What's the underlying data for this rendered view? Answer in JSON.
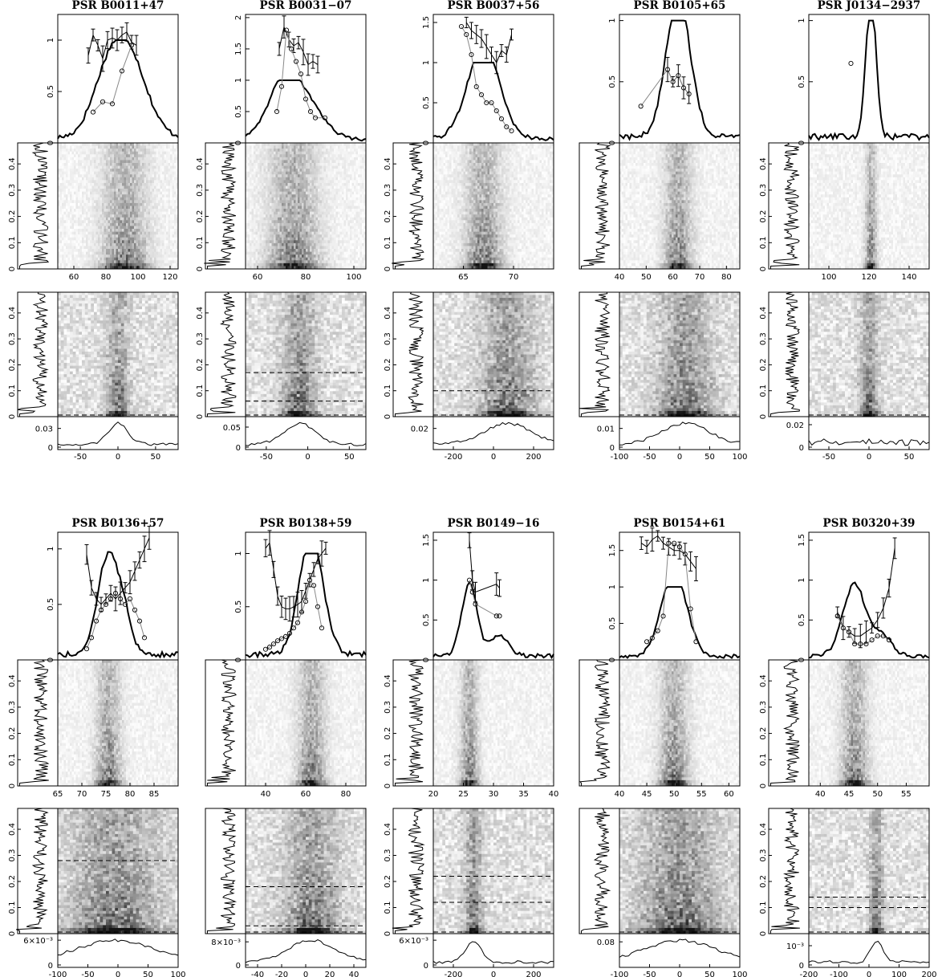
{
  "chart_data": [
    {
      "type": "heatmap",
      "title": "PSR B0011+47",
      "profile": {
        "yticks": [
          "0",
          "0.5",
          "1"
        ],
        "ylim": [
          0,
          1.25
        ],
        "peak": [
          92,
          12
        ],
        "peak2": [
          78,
          9
        ],
        "floor": 0.05
      },
      "modulation": {
        "present": true,
        "x": [
          69,
          72,
          75,
          78,
          81,
          84,
          87,
          90,
          93,
          96,
          99
        ],
        "y": [
          0.85,
          1.05,
          0.95,
          0.82,
          1.0,
          1.02,
          1.0,
          1.05,
          1.08,
          0.98,
          0.95
        ]
      },
      "index": [
        {
          "x": [
            72,
            78,
            84,
            90,
            96
          ],
          "y": [
            0.3,
            0.4,
            0.38,
            0.7,
            0.95
          ]
        }
      ],
      "lrfs": {
        "xlim": [
          50,
          125
        ],
        "xticks": [
          "60",
          "80",
          "100",
          "120"
        ],
        "yticks": [
          "0",
          "0.1",
          "0.2",
          "0.3",
          "0.4"
        ],
        "ylim": [
          0,
          0.48
        ]
      },
      "s2dfs": {
        "xlim": [
          -80,
          80
        ],
        "xticks": [
          "-50",
          "0",
          "50"
        ],
        "peak": [
          0,
          10
        ],
        "yticks": [
          "0",
          "0.03"
        ],
        "yvals": [
          0,
          0.03
        ],
        "ymax": 0.045,
        "dashed": []
      }
    },
    {
      "type": "heatmap",
      "title": "PSR B0031−07",
      "profile": {
        "yticks": [
          "0",
          "0.5",
          "1",
          "1.5",
          "2"
        ],
        "ylim": [
          0,
          2.05
        ],
        "peak": [
          75,
          9
        ],
        "peak2": [
          70,
          5
        ],
        "floor": 0.05
      },
      "modulation": {
        "present": true,
        "x": [
          69,
          71,
          73,
          75,
          77,
          79,
          81,
          83,
          85
        ],
        "y": [
          1.5,
          1.85,
          1.65,
          1.55,
          1.6,
          1.45,
          1.25,
          1.3,
          1.25
        ]
      },
      "index": [
        {
          "x": [
            68,
            70,
            72,
            74,
            76,
            78,
            80,
            82,
            84,
            88
          ],
          "y": [
            0.5,
            0.9,
            1.8,
            1.5,
            1.3,
            1.1,
            0.7,
            0.5,
            0.4,
            0.4
          ]
        }
      ],
      "lrfs": {
        "xlim": [
          55,
          105
        ],
        "xticks": [
          "60",
          "80",
          "100"
        ],
        "yticks": [
          "0",
          "0.1",
          "0.2",
          "0.3",
          "0.4"
        ],
        "ylim": [
          0,
          0.48
        ]
      },
      "s2dfs": {
        "xlim": [
          -75,
          70
        ],
        "xticks": [
          "-50",
          "0",
          "50"
        ],
        "peak": [
          -10,
          14
        ],
        "yticks": [
          "0",
          "0.05"
        ],
        "yvals": [
          0,
          0.05
        ],
        "ymax": 0.07,
        "dashed": [
          0.17,
          0.06
        ]
      }
    },
    {
      "type": "heatmap",
      "title": "PSR B0037+56",
      "profile": {
        "yticks": [
          "0",
          "0.5",
          "1",
          "1.5"
        ],
        "ylim": [
          0,
          1.6
        ],
        "peak": [
          67,
          1.6
        ],
        "peak2": [
          67,
          1.6
        ],
        "floor": 0.05
      },
      "modulation": {
        "present": true,
        "x": [
          65.3,
          65.8,
          66.3,
          66.8,
          67.3,
          67.8,
          68.3,
          68.8,
          69.3,
          69.8
        ],
        "y": [
          1.5,
          1.4,
          1.35,
          1.3,
          1.2,
          1.1,
          1.0,
          1.15,
          1.1,
          1.35
        ]
      },
      "index": [
        {
          "x": [
            64.8,
            65.3,
            65.8,
            66.3,
            66.8,
            67.3,
            67.8,
            68.3,
            68.8,
            69.3,
            69.8
          ],
          "y": [
            1.45,
            1.35,
            1.1,
            0.7,
            0.6,
            0.5,
            0.5,
            0.4,
            0.3,
            0.2,
            0.15
          ]
        }
      ],
      "lrfs": {
        "xlim": [
          62,
          74
        ],
        "xticks": [
          "65",
          "70"
        ],
        "yticks": [
          "0",
          "0.1",
          "0.2",
          "0.3",
          "0.4"
        ],
        "ylim": [
          0,
          0.48
        ]
      },
      "s2dfs": {
        "xlim": [
          -300,
          300
        ],
        "xticks": [
          "-200",
          "0",
          "200"
        ],
        "peak": [
          70,
          90
        ],
        "yticks": [
          "0.02"
        ],
        "yvals": [
          0.02
        ],
        "ymax": 0.03,
        "dashed": [
          0.1
        ]
      }
    },
    {
      "type": "heatmap",
      "title": "PSR B0105+65",
      "profile": {
        "yticks": [
          "0",
          "0.5",
          "1"
        ],
        "ylim": [
          0,
          1.05
        ],
        "peak": [
          62,
          4.5
        ],
        "peak2": [
          62,
          4.5
        ],
        "floor": 0.05
      },
      "modulation": {
        "present": true,
        "x": [
          58,
          60,
          62,
          64,
          66
        ],
        "y": [
          0.6,
          0.5,
          0.55,
          0.45,
          0.4
        ]
      },
      "index": [
        {
          "x": [
            48,
            58,
            60,
            62,
            64,
            66
          ],
          "y": [
            0.3,
            0.6,
            0.5,
            0.55,
            0.45,
            0.4
          ]
        }
      ],
      "lrfs": {
        "xlim": [
          40,
          85
        ],
        "xticks": [
          "40",
          "50",
          "60",
          "70",
          "80"
        ],
        "yticks": [],
        "ylim": [
          0,
          0.48
        ]
      },
      "s2dfs": {
        "xlim": [
          -100,
          100
        ],
        "xticks": [
          "-100",
          "-50",
          "0",
          "50",
          "100"
        ],
        "peak": [
          10,
          30
        ],
        "yticks": [
          "0",
          "0.01"
        ],
        "yvals": [
          0,
          0.01
        ],
        "ymax": 0.015,
        "dashed": []
      }
    },
    {
      "type": "heatmap",
      "title": "PSR J0134−2937",
      "profile": {
        "yticks": [
          "0",
          "0.5",
          "1"
        ],
        "ylim": [
          0,
          1.05
        ],
        "peak": [
          121,
          2.5
        ],
        "peak2": [
          121,
          2.5
        ],
        "floor": 0.05
      },
      "modulation": {
        "present": false,
        "x": [],
        "y": []
      },
      "index": [
        {
          "x": [
            111
          ],
          "y": [
            0.65
          ]
        }
      ],
      "lrfs": {
        "xlim": [
          90,
          150
        ],
        "xticks": [
          "100",
          "120",
          "140"
        ],
        "yticks": [
          "0",
          "0.1",
          "0.2",
          "0.3",
          "0.4"
        ],
        "ylim": [
          0,
          0.48
        ]
      },
      "s2dfs": {
        "xlim": [
          -75,
          75
        ],
        "xticks": [
          "-50",
          "0",
          "50"
        ],
        "peak": [
          0,
          0
        ],
        "yticks": [
          "0",
          "0.02"
        ],
        "yvals": [
          0,
          0.02
        ],
        "ymax": 0.025,
        "dashed": []
      }
    },
    {
      "type": "heatmap",
      "title": "PSR B0136+57",
      "profile": {
        "yticks": [
          "0",
          "0.5",
          "1"
        ],
        "ylim": [
          0,
          1.15
        ],
        "peak": [
          75.5,
          2.2
        ],
        "peak2": [
          79,
          1.5
        ],
        "floor": 0.05
      },
      "modulation": {
        "present": true,
        "x": [
          71,
          72,
          73,
          74,
          75,
          76,
          77,
          78,
          79,
          80,
          81,
          82,
          83,
          84
        ],
        "y": [
          0.95,
          0.65,
          0.55,
          0.5,
          0.55,
          0.6,
          0.55,
          0.6,
          0.65,
          0.7,
          0.8,
          0.9,
          1.0,
          1.1
        ]
      },
      "index": [
        {
          "x": [
            71,
            72,
            73,
            74,
            75,
            76,
            77,
            78,
            79,
            80,
            81,
            82,
            83
          ],
          "y": [
            0.1,
            0.2,
            0.35,
            0.45,
            0.5,
            0.55,
            0.6,
            0.55,
            0.5,
            0.55,
            0.45,
            0.35,
            0.2
          ]
        }
      ],
      "lrfs": {
        "xlim": [
          65,
          90
        ],
        "xticks": [
          "65",
          "70",
          "75",
          "80",
          "85"
        ],
        "yticks": [
          "0",
          "0.1",
          "0.2",
          "0.3",
          "0.4"
        ],
        "ylim": [
          0,
          0.48
        ]
      },
      "s2dfs": {
        "xlim": [
          -100,
          100
        ],
        "xticks": [
          "-100",
          "-50",
          "0",
          "50",
          "100"
        ],
        "peak": [
          -5,
          50
        ],
        "yticks": [
          "0",
          "6×10⁻³"
        ],
        "yvals": [
          0,
          0.006
        ],
        "ymax": 0.007,
        "dashed": [
          0.28
        ]
      }
    },
    {
      "type": "heatmap",
      "title": "PSR B0138+59",
      "profile": {
        "yticks": [
          "0",
          "0.5",
          "1"
        ],
        "ylim": [
          0,
          1.2
        ],
        "peak": [
          63,
          6
        ],
        "peak2": [
          62,
          5
        ],
        "floor": 0.05
      },
      "modulation": {
        "present": true,
        "x": [
          40,
          42,
          44,
          46,
          48,
          50,
          52,
          54,
          56,
          58,
          60,
          62,
          64,
          66,
          68,
          70
        ],
        "y": [
          1.05,
          1.1,
          0.85,
          0.6,
          0.5,
          0.48,
          0.48,
          0.5,
          0.52,
          0.55,
          0.65,
          0.75,
          0.85,
          0.95,
          1.0,
          1.05
        ]
      },
      "index": [
        {
          "x": [
            40,
            42,
            44,
            46,
            48,
            50,
            52,
            54,
            56,
            58,
            60,
            62,
            64,
            66,
            68
          ],
          "y": [
            0.1,
            0.12,
            0.15,
            0.18,
            0.2,
            0.22,
            0.25,
            0.3,
            0.35,
            0.45,
            0.55,
            0.75,
            0.7,
            0.5,
            0.3
          ]
        }
      ],
      "lrfs": {
        "xlim": [
          30,
          90
        ],
        "xticks": [
          "40",
          "60",
          "80"
        ],
        "yticks": [],
        "ylim": [
          0,
          0.48
        ]
      },
      "s2dfs": {
        "xlim": [
          -50,
          50
        ],
        "xticks": [
          "-40",
          "-20",
          "0",
          "20",
          "40"
        ],
        "peak": [
          5,
          15
        ],
        "yticks": [
          "0",
          "8×10⁻³"
        ],
        "yvals": [
          0,
          0.008
        ],
        "ymax": 0.01,
        "dashed": [
          0.18,
          0.03
        ]
      }
    },
    {
      "type": "heatmap",
      "title": "PSR B0149−16",
      "profile": {
        "yticks": [
          "0",
          "0.5",
          "1",
          "1.5"
        ],
        "ylim": [
          0,
          1.6
        ],
        "peak": [
          26,
          1.3
        ],
        "peak2": [
          31,
          1.5
        ],
        "floor": 0.05
      },
      "modulation": {
        "present": true,
        "x": [
          26,
          26.5,
          27,
          30.5,
          31
        ],
        "y": [
          1.5,
          1.0,
          0.85,
          0.95,
          0.9
        ]
      },
      "index": [
        {
          "x": [
            26,
            26.5,
            27,
            30.5,
            31
          ],
          "y": [
            1.0,
            0.85,
            0.7,
            0.55,
            0.55
          ]
        }
      ],
      "lrfs": {
        "xlim": [
          20,
          40
        ],
        "xticks": [
          "20",
          "25",
          "30",
          "35",
          "40"
        ],
        "yticks": [
          "0",
          "0.1",
          "0.2",
          "0.3",
          "0.4"
        ],
        "ylim": [
          0,
          0.48
        ]
      },
      "s2dfs": {
        "xlim": [
          -300,
          300
        ],
        "xticks": [
          "-200",
          "0",
          "200"
        ],
        "peak": [
          -100,
          30
        ],
        "yticks": [
          "0",
          "6×10⁻³"
        ],
        "yvals": [
          0,
          0.006
        ],
        "ymax": 0.007,
        "dashed": [
          0.22,
          0.12
        ]
      }
    },
    {
      "type": "heatmap",
      "title": "PSR B0154+61",
      "profile": {
        "yticks": [
          "0",
          "0.5",
          "1",
          "1.5"
        ],
        "ylim": [
          0,
          1.75
        ],
        "peak": [
          50,
          2.3
        ],
        "peak2": [
          50,
          2.3
        ],
        "floor": 0.05
      },
      "modulation": {
        "present": true,
        "x": [
          44,
          45,
          46,
          47,
          48,
          49,
          50,
          51,
          52,
          53,
          54
        ],
        "y": [
          1.6,
          1.55,
          1.65,
          1.7,
          1.6,
          1.55,
          1.5,
          1.5,
          1.45,
          1.35,
          1.25
        ]
      },
      "index": [
        {
          "x": [
            45,
            46,
            47,
            48,
            49,
            50,
            51,
            52,
            53,
            54
          ],
          "y": [
            0.25,
            0.3,
            0.4,
            0.6,
            1.6,
            1.6,
            1.55,
            1.45,
            0.7,
            0.25
          ]
        }
      ],
      "lrfs": {
        "xlim": [
          40,
          62
        ],
        "xticks": [
          "40",
          "45",
          "50",
          "55",
          "60"
        ],
        "yticks": [],
        "ylim": [
          0,
          0.48
        ]
      },
      "s2dfs": {
        "xlim": [
          -100,
          100
        ],
        "xticks": [
          "-100",
          "-50",
          "0",
          "50",
          "100"
        ],
        "peak": [
          0,
          45
        ],
        "yticks": [
          "0.08"
        ],
        "yvals": [
          0.08
        ],
        "ymax": 0.1,
        "dashed": []
      }
    },
    {
      "type": "heatmap",
      "title": "PSR B0320+39",
      "profile": {
        "yticks": [
          "0",
          "0.5",
          "1",
          "1.5"
        ],
        "ylim": [
          0,
          1.6
        ],
        "peak": [
          46,
          2
        ],
        "peak2": [
          51,
          1.5
        ],
        "floor": 0.05
      },
      "modulation": {
        "present": true,
        "x": [
          43,
          44,
          45,
          46,
          47,
          48,
          49,
          50,
          51,
          52,
          53
        ],
        "y": [
          0.6,
          0.4,
          0.35,
          0.3,
          0.3,
          0.35,
          0.4,
          0.5,
          0.65,
          0.9,
          1.4
        ]
      },
      "index": [
        {
          "x": [
            43,
            44,
            45,
            46,
            47,
            48,
            49,
            50,
            51,
            52
          ],
          "y": [
            0.55,
            0.4,
            0.35,
            0.2,
            0.2,
            0.2,
            0.25,
            0.3,
            0.3,
            0.25
          ]
        }
      ],
      "lrfs": {
        "xlim": [
          38,
          59
        ],
        "xticks": [
          "40",
          "45",
          "50",
          "55"
        ],
        "yticks": [
          "0",
          "0.1",
          "0.2",
          "0.3",
          "0.4"
        ],
        "ylim": [
          0,
          0.48
        ]
      },
      "s2dfs": {
        "xlim": [
          -200,
          200
        ],
        "xticks": [
          "-200",
          "-100",
          "0",
          "100",
          "200"
        ],
        "peak": [
          25,
          15
        ],
        "yticks": [
          "0",
          "10⁻³"
        ],
        "yvals": [
          0,
          0.001
        ],
        "ymax": 0.0015,
        "dashed": [
          0.14,
          0.1
        ]
      }
    }
  ]
}
